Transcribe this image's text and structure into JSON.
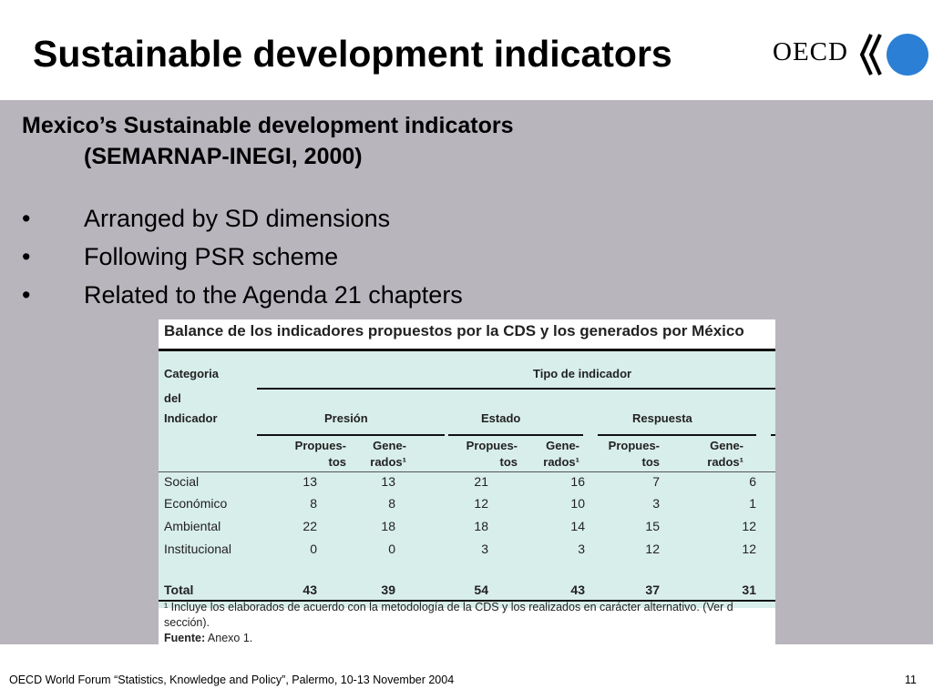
{
  "slide": {
    "title": "Sustainable development indicators",
    "logo_text": "OECD",
    "subtitle_line1": "Mexico’s Sustainable development indicators",
    "subtitle_line2": "(SEMARNAP-INEGI, 2000)",
    "bullet_symbol": "•",
    "bullets": [
      "Arranged by SD dimensions",
      "Following PSR scheme",
      "Related to the Agenda 21 chapters"
    ],
    "footer": "OECD World Forum “Statistics, Knowledge and Policy”, Palermo, 10-13 November 2004",
    "page_number": "11"
  },
  "table": {
    "title": "Balance de los indicadores propuestos por la CDS y los generados por México",
    "category_header_1": "Categoria",
    "category_header_2": "del",
    "category_header_3": "Indicador",
    "type_header": "Tipo de indicador",
    "groups": [
      "Presión",
      "Estado",
      "Respuesta"
    ],
    "sub_proposed_1": "Propues-",
    "sub_proposed_2": "tos",
    "sub_generated_1": "Gene-",
    "sub_generated_2": "rados¹",
    "rows": [
      {
        "label": "Social",
        "values": [
          "13",
          "13",
          "21",
          "16",
          "7",
          "6"
        ]
      },
      {
        "label": "Económico",
        "values": [
          "8",
          "8",
          "12",
          "10",
          "3",
          "1"
        ]
      },
      {
        "label": "Ambiental",
        "values": [
          "22",
          "18",
          "18",
          "14",
          "15",
          "12"
        ]
      },
      {
        "label": "Institucional",
        "values": [
          "0",
          "0",
          "3",
          "3",
          "12",
          "12"
        ]
      }
    ],
    "total": {
      "label": "Total",
      "values": [
        "43",
        "39",
        "54",
        "43",
        "37",
        "31"
      ]
    },
    "footnote_1": "¹ Incluye los elaborados de acuerdo con la metodología de la CDS y los realizados en carácter alternativo. (Ver d",
    "footnote_2": "sección).",
    "source_label": "Fuente:",
    "source_text": " Anexo 1."
  },
  "colors": {
    "panel": "#b8b5bd",
    "table_bg": "#d8eeea",
    "logo_blue": "#2b7fd4"
  }
}
